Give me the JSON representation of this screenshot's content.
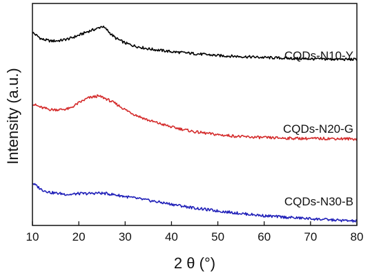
{
  "chart_data": {
    "type": "line",
    "title": "",
    "xlabel": "2 θ (°)",
    "ylabel": "Intensity (a.u.)",
    "xlim": [
      10,
      80
    ],
    "xticks": [
      10,
      20,
      30,
      40,
      50,
      60,
      70,
      80
    ],
    "y_ticks_shown": false,
    "y_scale": "arbitrary units, vertically offset stacked curves",
    "grid": false,
    "legend": "labels placed next to each curve on the right",
    "series": [
      {
        "name": "CQDs-N10-Y",
        "color": "#000000",
        "x": [
          10,
          12,
          14,
          16,
          18,
          20,
          22,
          24,
          25,
          26,
          27,
          28,
          30,
          32,
          35,
          40,
          45,
          50,
          55,
          60,
          65,
          70,
          75,
          80
        ],
        "y": [
          100,
          96.5,
          95.5,
          95.8,
          96.8,
          98.5,
          100.5,
          102,
          103.2,
          101.5,
          99,
          97,
          94.5,
          93,
          91.5,
          90,
          89,
          88,
          87.5,
          87,
          86.6,
          86.3,
          86.1,
          86
        ]
      },
      {
        "name": "CQDs-N20-G",
        "color": "#d42a2a",
        "x": [
          10,
          12,
          14,
          16,
          18,
          20,
          22,
          24,
          25,
          26,
          28,
          30,
          32,
          35,
          40,
          45,
          50,
          55,
          60,
          65,
          70,
          75,
          80
        ],
        "y": [
          63,
          61,
          60,
          60,
          60.5,
          63.5,
          66,
          67,
          66.5,
          65.5,
          63,
          60,
          57.5,
          54.5,
          51,
          48.5,
          47,
          46,
          45.5,
          45.2,
          45,
          45,
          44.8
        ]
      },
      {
        "name": "CQDs-N30-B",
        "color": "#1f1fb8",
        "x": [
          10,
          12,
          14,
          16,
          18,
          20,
          22,
          24,
          26,
          28,
          30,
          35,
          40,
          45,
          50,
          55,
          60,
          65,
          70,
          75,
          80
        ],
        "y": [
          22,
          18.5,
          17,
          16.5,
          16,
          16.5,
          16.5,
          16.8,
          16.5,
          15.8,
          15,
          13,
          11,
          9,
          7.5,
          6.2,
          5,
          4.2,
          3.5,
          2.8,
          2.2
        ]
      }
    ]
  }
}
